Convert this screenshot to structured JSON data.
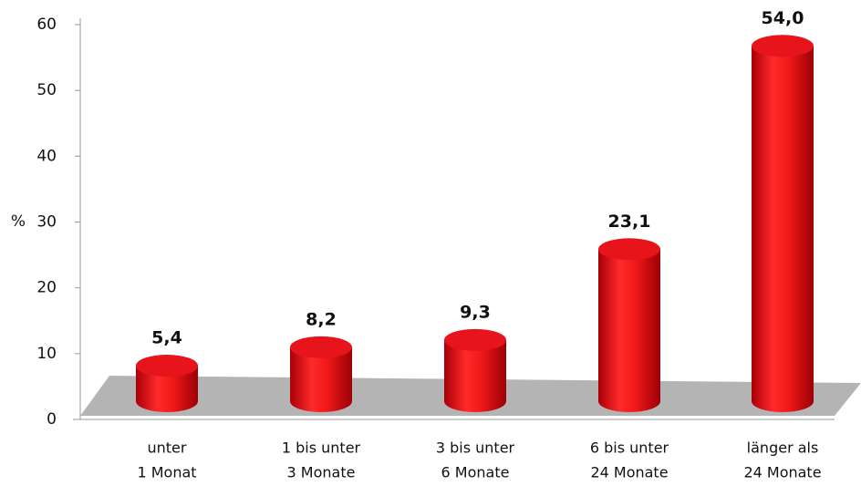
{
  "chart_data": {
    "type": "bar",
    "ylabel": "%",
    "categories": [
      [
        "unter",
        "1 Monat"
      ],
      [
        "1 bis unter",
        "3 Monate"
      ],
      [
        "3 bis unter",
        "6 Monate"
      ],
      [
        "6 bis unter",
        "24 Monate"
      ],
      [
        "länger als",
        "24 Monate"
      ]
    ],
    "values": [
      5.4,
      8.2,
      9.3,
      23.1,
      54.0
    ],
    "value_labels": [
      "5,4",
      "8,2",
      "9,3",
      "23,1",
      "54,0"
    ],
    "color": "#e8141c",
    "ylim": [
      0,
      60
    ],
    "yticks": [
      0,
      10,
      20,
      30,
      40,
      50,
      60
    ]
  }
}
